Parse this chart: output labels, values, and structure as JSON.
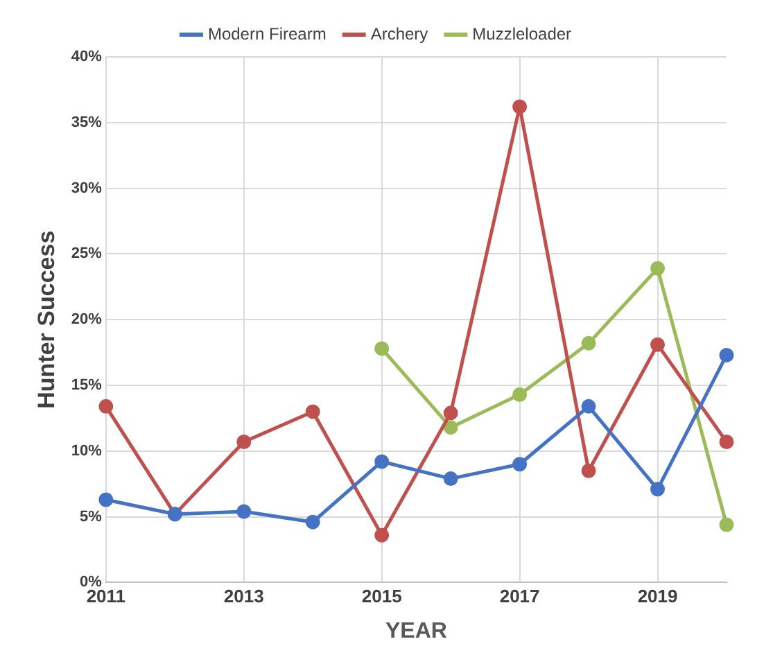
{
  "chart_data": {
    "type": "line",
    "xlabel": "YEAR",
    "ylabel": "Hunter Success",
    "x": [
      2011,
      2012,
      2013,
      2014,
      2015,
      2016,
      2017,
      2018,
      2019,
      2020
    ],
    "series": [
      {
        "name": "Modern Firearm",
        "color": "#4472c4",
        "values": [
          6.3,
          5.2,
          5.4,
          4.6,
          9.2,
          7.9,
          9.0,
          13.4,
          7.1,
          17.3
        ]
      },
      {
        "name": "Archery",
        "color": "#c0504d",
        "values": [
          13.4,
          5.2,
          10.7,
          13.0,
          3.6,
          12.9,
          36.2,
          8.5,
          18.1,
          10.7
        ]
      },
      {
        "name": "Muzzleloader",
        "color": "#9bbb59",
        "values": [
          null,
          null,
          null,
          null,
          17.8,
          11.8,
          14.3,
          18.2,
          23.9,
          4.4
        ]
      }
    ],
    "xlim": [
      2011,
      2020
    ],
    "xticks": [
      2011,
      2013,
      2015,
      2017,
      2019
    ],
    "ylim": [
      0,
      40
    ],
    "yticks": [
      {
        "value": 0,
        "label": "0%"
      },
      {
        "value": 5,
        "label": "5%"
      },
      {
        "value": 10,
        "label": "10%"
      },
      {
        "value": 15,
        "label": "15%"
      },
      {
        "value": 20,
        "label": "20%"
      },
      {
        "value": 25,
        "label": "25%"
      },
      {
        "value": 30,
        "label": "30%"
      },
      {
        "value": 35,
        "label": "35%"
      },
      {
        "value": 40,
        "label": "40%"
      }
    ],
    "grid": true,
    "legend": "top",
    "marker": "circle",
    "line_style": "solid"
  }
}
